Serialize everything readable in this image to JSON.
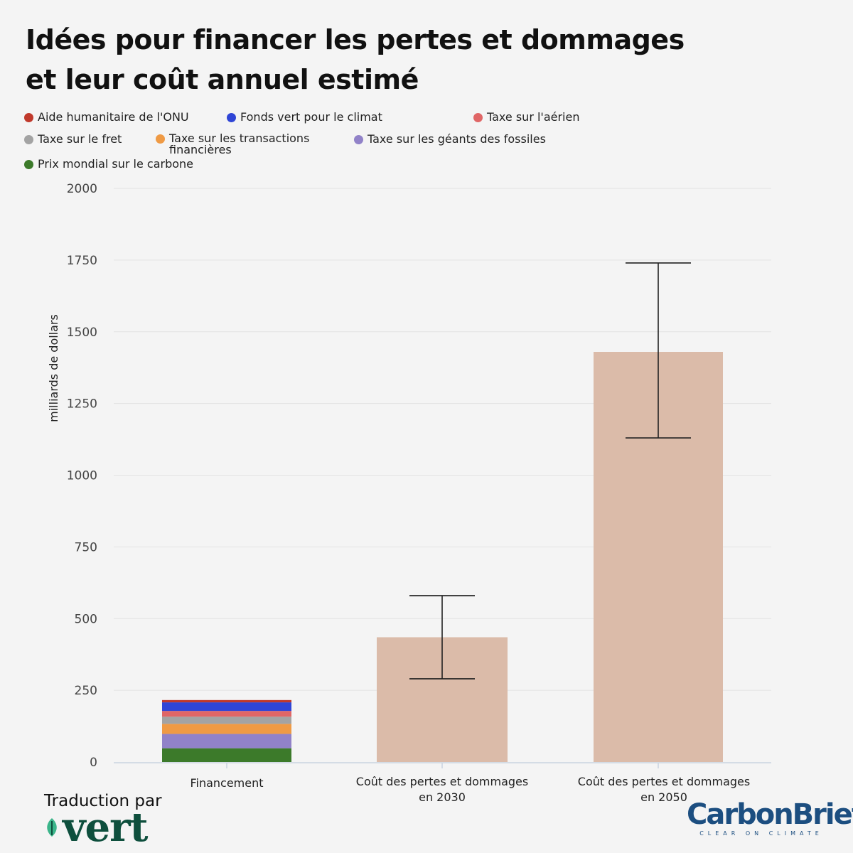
{
  "title_line1": "Idées pour financer les pertes et dommages",
  "title_line2": "et leur coût annuel estimé",
  "legend": [
    {
      "label": "Aide humanitaire de l'ONU",
      "color": "#c0392b"
    },
    {
      "label": "Fonds vert pour le climat",
      "color": "#2f45d6"
    },
    {
      "label": "Taxe sur l'aérien",
      "color": "#e06666"
    },
    {
      "label": "Taxe sur le fret",
      "color": "#a3a3a3"
    },
    {
      "label": "Taxe sur les transactions financières",
      "color": "#ef9a44"
    },
    {
      "label": "Taxe sur les géants des fossiles",
      "color": "#9182c8"
    },
    {
      "label": "Prix mondial sur le carbone",
      "color": "#3c7a2a"
    }
  ],
  "chart_data": {
    "type": "bar",
    "ylabel": "milliards de dollars",
    "ylim": [
      0,
      2000
    ],
    "yticks": [
      0,
      250,
      500,
      750,
      1000,
      1250,
      1500,
      1750,
      2000
    ],
    "categories": [
      "Financement",
      "Coût des pertes et dommages en 2030",
      "Coût des pertes et dommages en 2050"
    ],
    "stacked_funding": [
      {
        "name": "Prix mondial sur le carbone",
        "value": 48
      },
      {
        "name": "Taxe sur les géants des fossiles",
        "value": 50
      },
      {
        "name": "Taxe sur les transactions financières",
        "value": 35
      },
      {
        "name": "Taxe sur le fret",
        "value": 25
      },
      {
        "name": "Taxe sur l'aérien",
        "value": 20
      },
      {
        "name": "Fonds vert pour le climat",
        "value": 30
      },
      {
        "name": "Aide humanitaire de l'ONU",
        "value": 8
      }
    ],
    "cost_bars": [
      {
        "category": "Coût des pertes et dommages en 2030",
        "value": 435,
        "error_low": 290,
        "error_high": 580,
        "color": "#dbbba9"
      },
      {
        "category": "Coût des pertes et dommages en 2050",
        "value": 1430,
        "error_low": 1130,
        "error_high": 1740,
        "color": "#dbbba9"
      }
    ],
    "grid": true
  },
  "footer": {
    "translation": "Traduction par",
    "vert": "vert",
    "carbonbrief": "CarbonBrief",
    "carbonbrief_tagline": "CLEAR ON CLIMATE"
  }
}
